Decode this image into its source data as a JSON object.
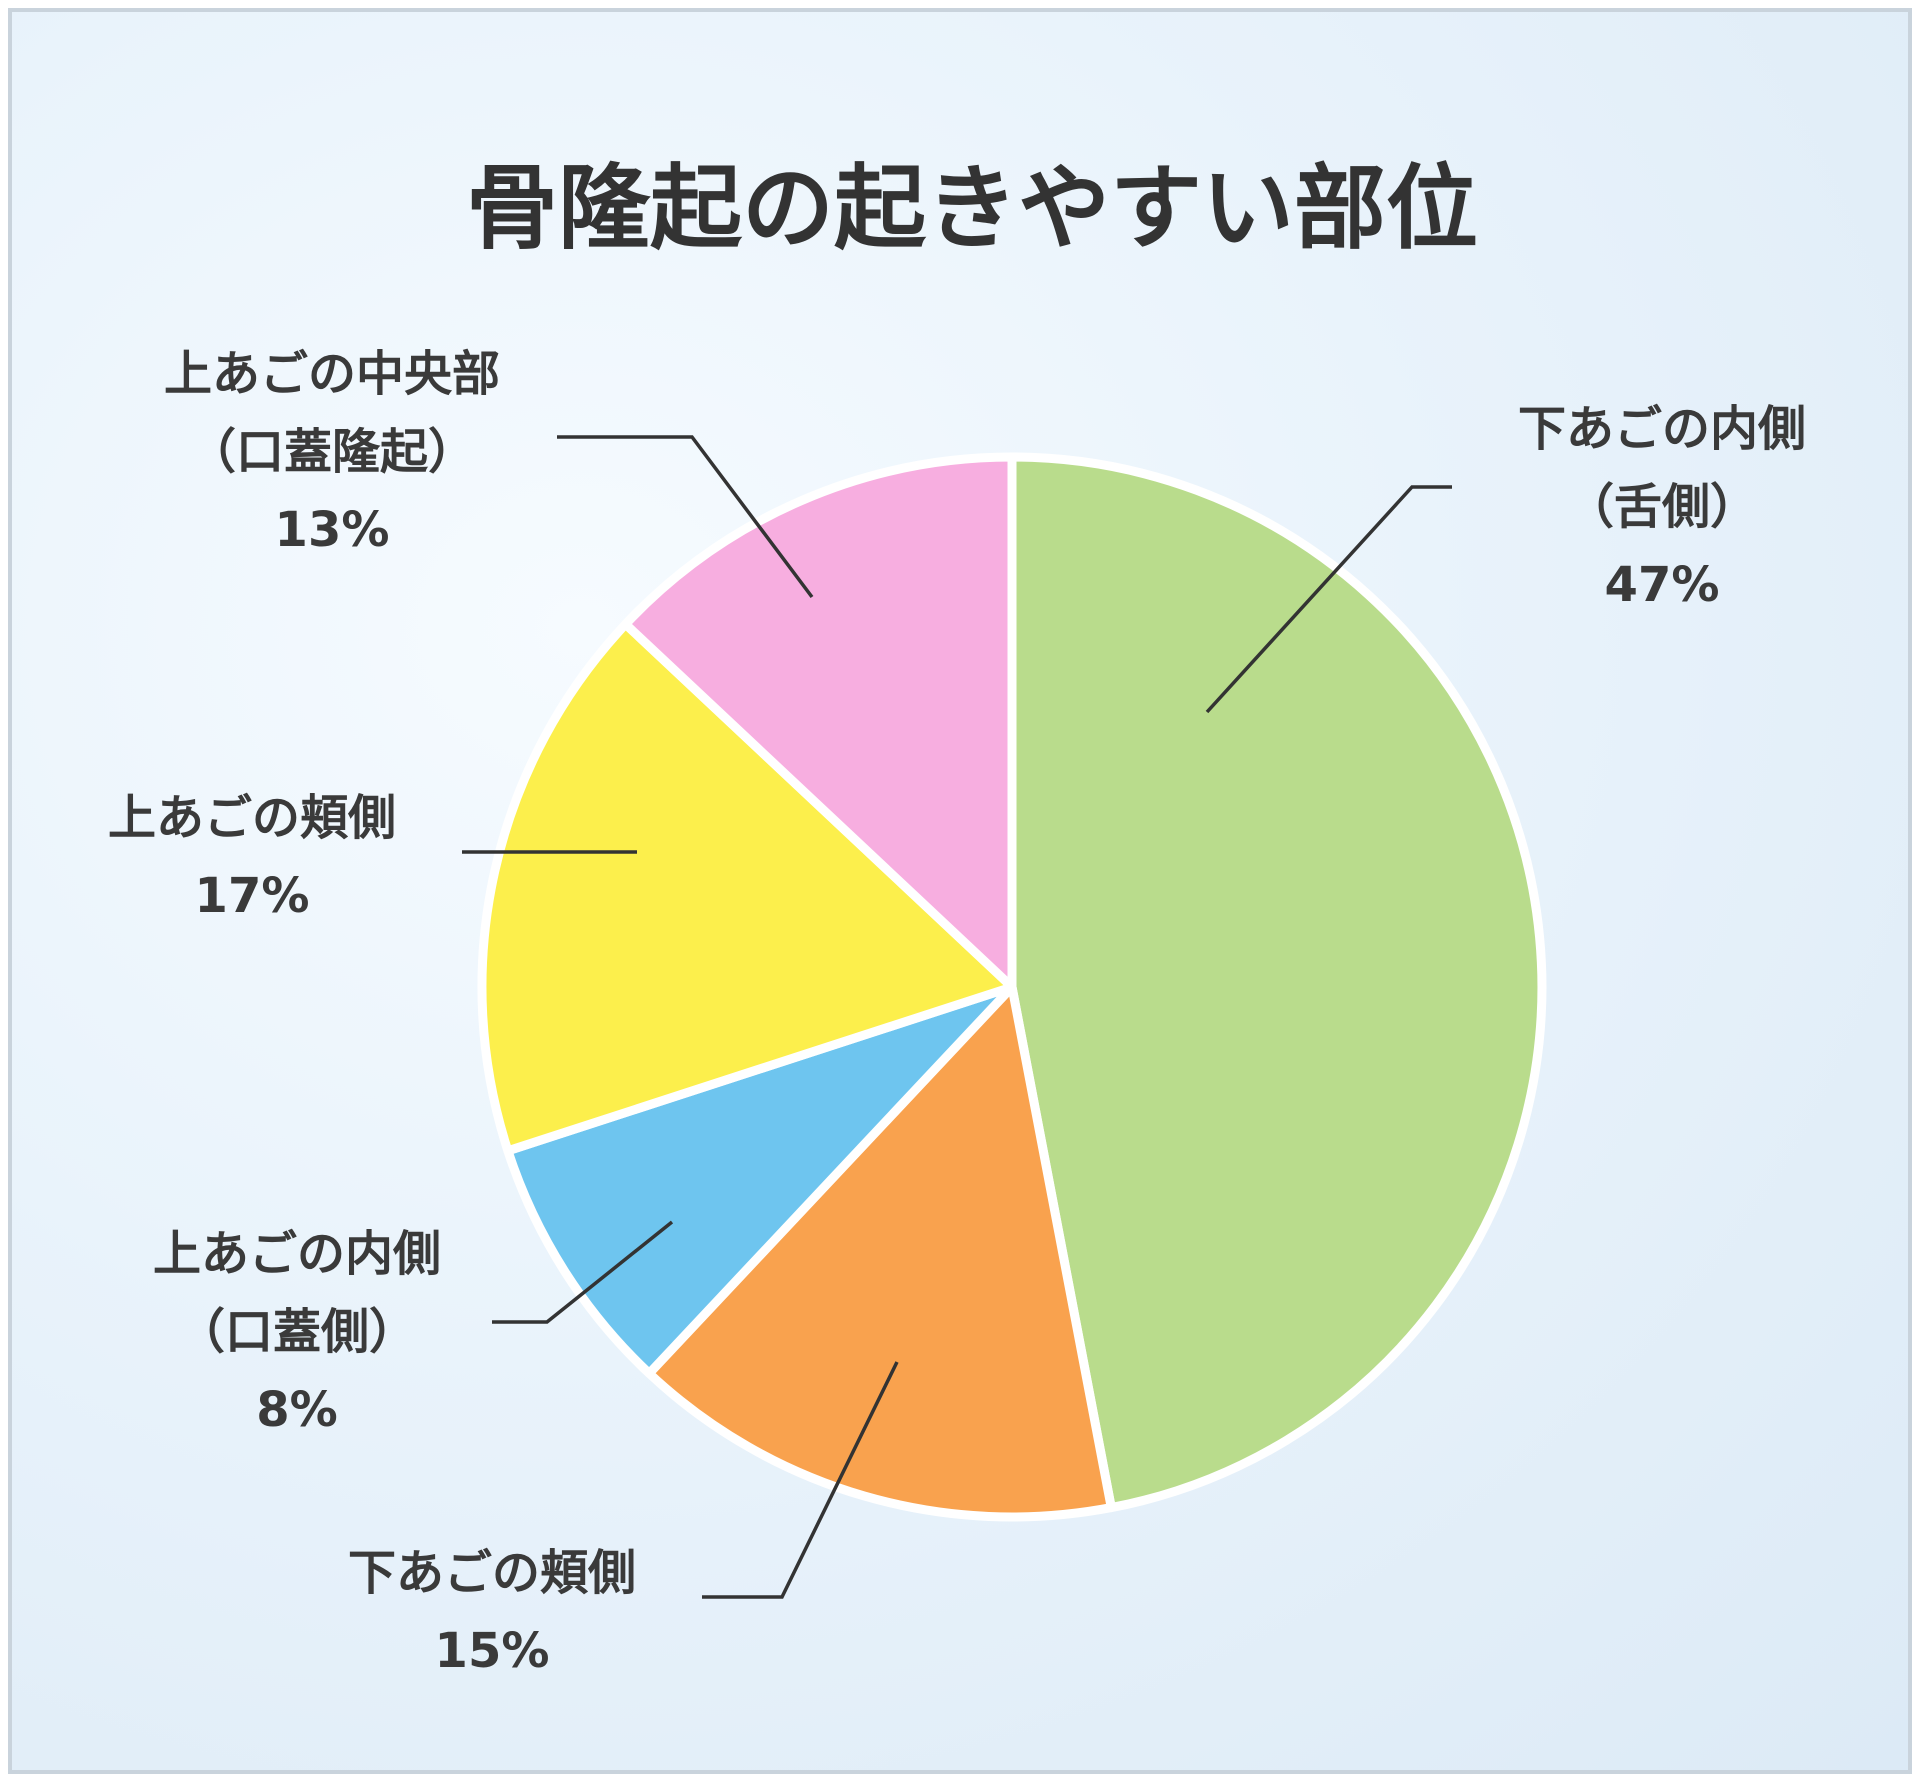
{
  "chart_data": {
    "type": "pie",
    "title": "骨隆起の起きやすい部位",
    "slices": [
      {
        "label": "下あごの内側",
        "sublabel": "（舌側）",
        "value": 47,
        "value_label": "47%",
        "color": "#b9dc8c"
      },
      {
        "label": "下あごの頬側",
        "sublabel": "",
        "value": 15,
        "value_label": "15%",
        "color": "#f9a24e"
      },
      {
        "label": "上あごの内側",
        "sublabel": "（口蓋側）",
        "value": 8,
        "value_label": "8%",
        "color": "#6ec5ef"
      },
      {
        "label": "上あごの頬側",
        "sublabel": "",
        "value": 17,
        "value_label": "17%",
        "color": "#fcef4c"
      },
      {
        "label": "上あごの中央部",
        "sublabel": "（口蓋隆起）",
        "value": 13,
        "value_label": "13%",
        "color": "#f7aee0"
      }
    ]
  }
}
